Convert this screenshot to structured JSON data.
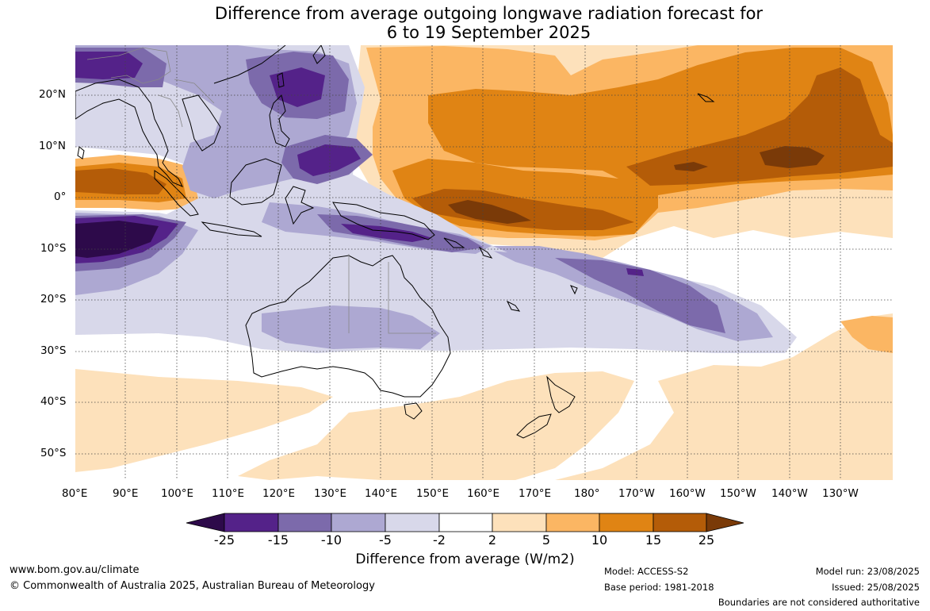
{
  "title_line1": "Difference from average outgoing longwave radiation forecast for",
  "title_line2": "6 to 19 September 2025",
  "lat_labels": [
    "20°N",
    "10°N",
    "0°",
    "10°S",
    "20°S",
    "30°S",
    "40°S",
    "50°S"
  ],
  "lon_labels": [
    "80°E",
    "90°E",
    "100°E",
    "110°E",
    "120°E",
    "130°E",
    "140°E",
    "150°E",
    "160°E",
    "170°E",
    "180°",
    "170°W",
    "160°W",
    "150°W",
    "140°W",
    "130°W"
  ],
  "colorbar": {
    "title": "Difference from average (W/m2)",
    "ticks": [
      "-25",
      "-15",
      "-10",
      "-5",
      "-2",
      "2",
      "5",
      "10",
      "15",
      "25"
    ],
    "colors": {
      "below_-25": "#2d0a4a",
      "-25_-15": "#542289",
      "-15_-10": "#7c6aab",
      "-10_-5": "#ada8d2",
      "-5_-2": "#d8d8ea",
      "-2_2": "#ffffff",
      "2_5": "#fde1bb",
      "5_10": "#fbb663",
      "10_15": "#e08414",
      "15_25": "#b45c08",
      "above_25": "#7a3a08"
    }
  },
  "footer": {
    "website": "www.bom.gov.au/climate",
    "copyright": "© Commonwealth of Australia 2025, Australian Bureau of Meteorology",
    "model": "Model: ACCESS-S2",
    "base_period": "Base period: 1981-2018",
    "model_run": "Model run: 23/08/2025",
    "issued": "Issued: 25/08/2025",
    "disclaimer": "Boundaries are not considered authoritative"
  }
}
